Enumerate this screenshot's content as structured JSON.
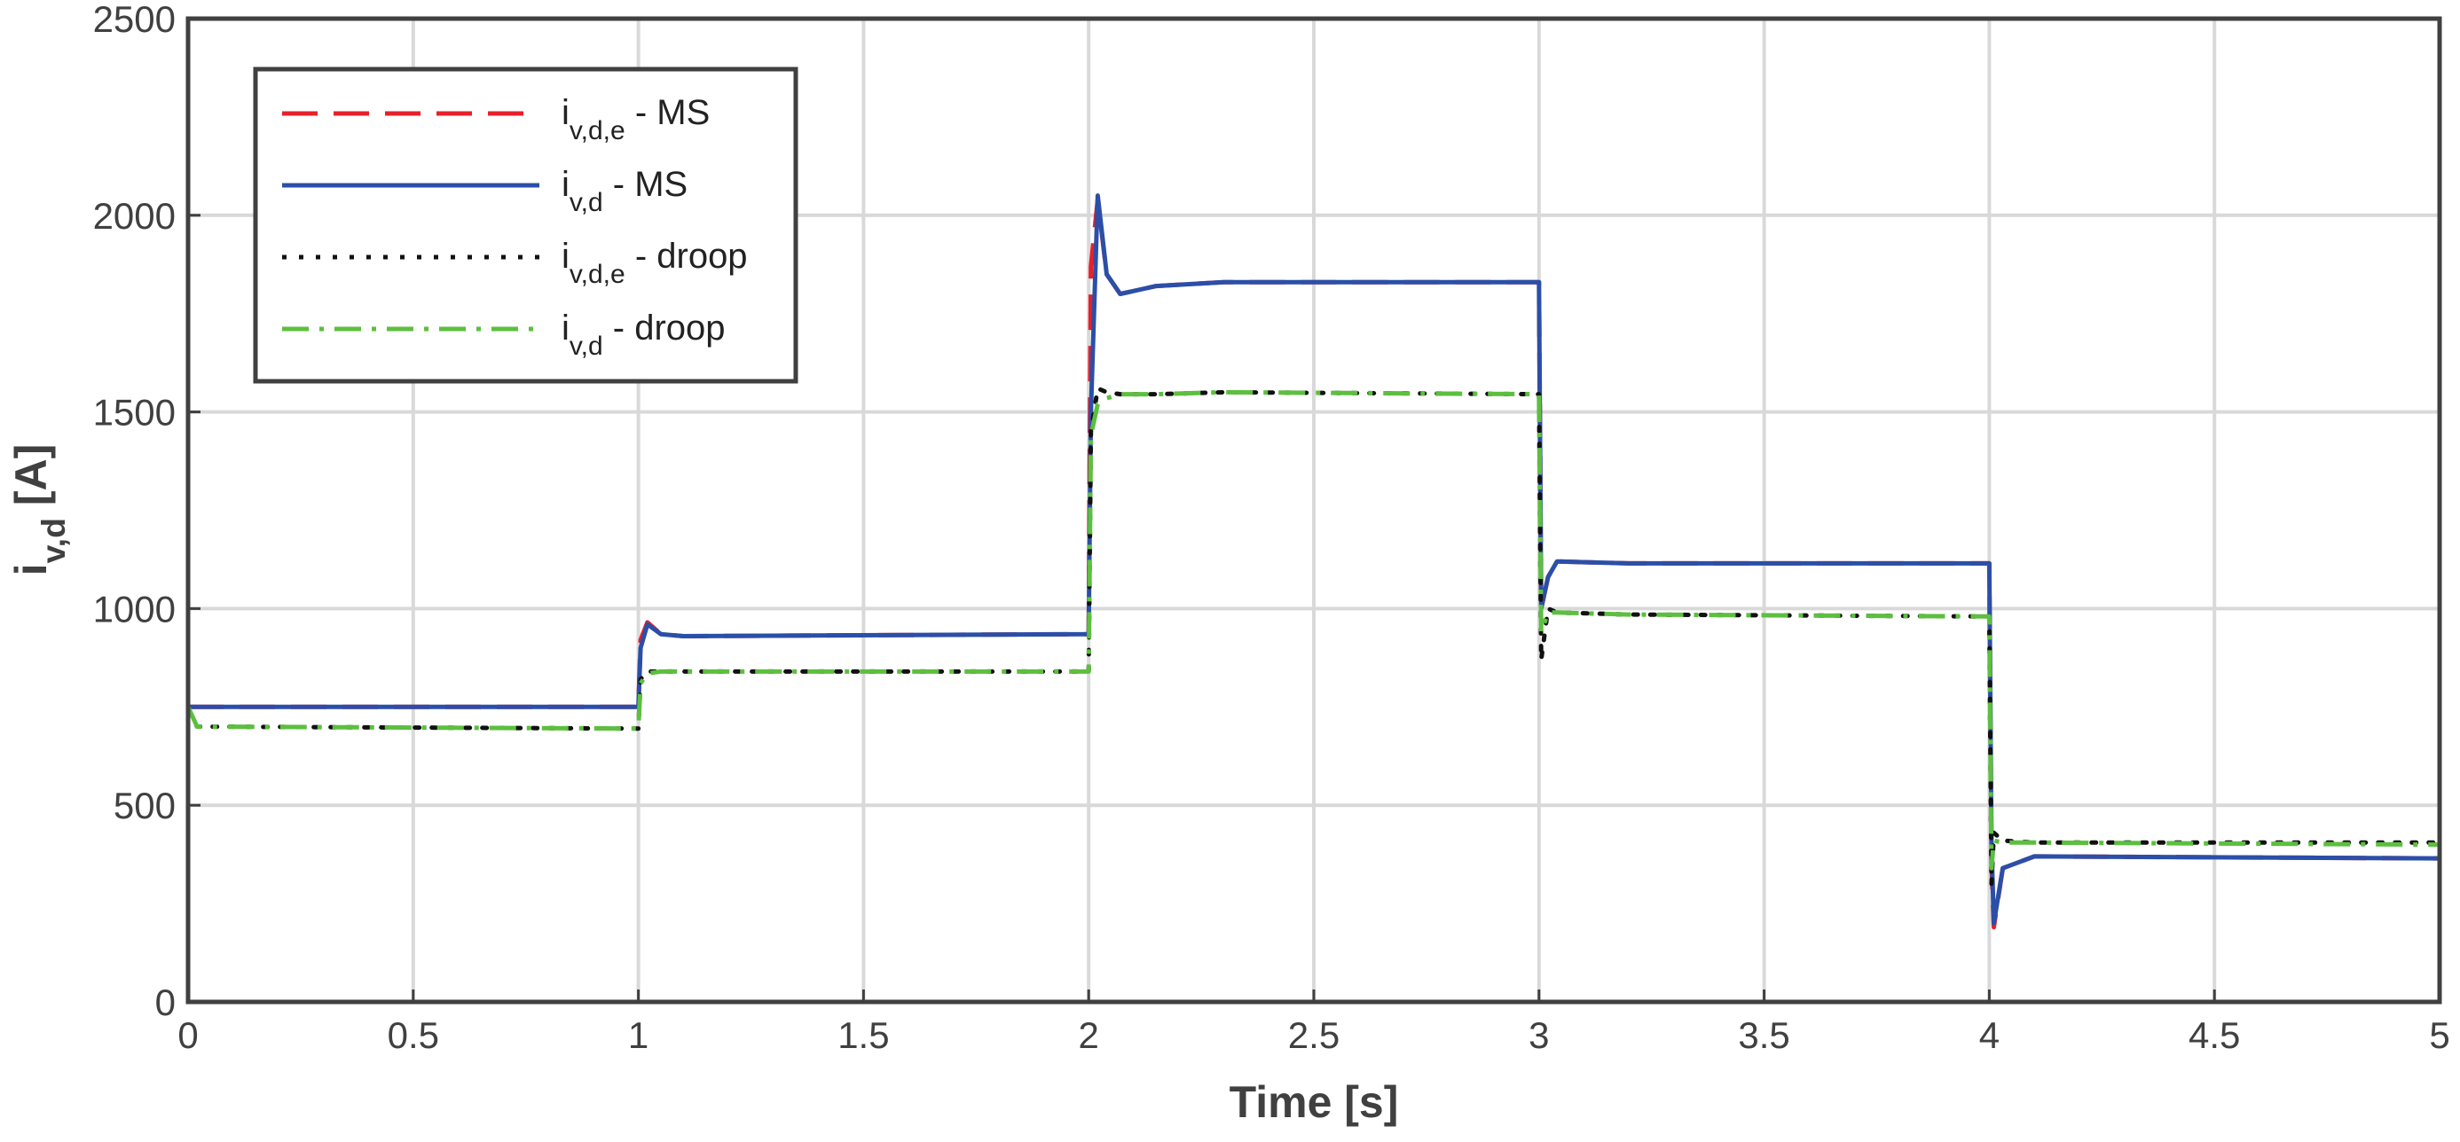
{
  "chart_data": {
    "type": "line",
    "xlabel": "Time [s]",
    "ylabel": "iv,d [A]",
    "x": [
      0,
      0.02,
      1.0,
      1.005,
      1.02,
      1.05,
      1.1,
      2.0,
      2.005,
      2.02,
      2.04,
      2.07,
      2.15,
      2.3,
      3.0,
      3.005,
      3.02,
      3.04,
      3.2,
      4.0,
      4.005,
      4.01,
      4.03,
      4.1,
      5
    ],
    "series": [
      {
        "name": "iv,d,e - MS",
        "color": "#e8202a",
        "style": "dashed",
        "values": [
          750,
          750,
          750,
          920,
          965,
          935,
          930,
          935,
          1870,
          2040,
          1850,
          1800,
          1820,
          1830,
          1830,
          1000,
          1080,
          1120,
          1115,
          1115,
          350,
          190,
          340,
          370,
          365
        ]
      },
      {
        "name": "iv,d - MS",
        "color": "#2b4fa8",
        "style": "solid",
        "values": [
          750,
          750,
          750,
          900,
          960,
          935,
          930,
          935,
          1500,
          2050,
          1850,
          1800,
          1820,
          1830,
          1830,
          1000,
          1080,
          1120,
          1115,
          1115,
          400,
          200,
          340,
          370,
          365
        ]
      },
      {
        "name": "iv,d,e - droop",
        "color": "#111111",
        "style": "dotted",
        "values": [
          740,
          700,
          695,
          820,
          840,
          840,
          840,
          840,
          1450,
          1560,
          1550,
          1545,
          1545,
          1550,
          1545,
          870,
          1000,
          990,
          985,
          980,
          300,
          430,
          410,
          405,
          405
        ]
      },
      {
        "name": "iv,d - droop",
        "color": "#5cbf3f",
        "style": "dashdot",
        "values": [
          750,
          700,
          695,
          810,
          835,
          840,
          840,
          840,
          1440,
          1520,
          1535,
          1545,
          1545,
          1550,
          1545,
          940,
          990,
          990,
          985,
          980,
          340,
          410,
          405,
          405,
          400
        ]
      }
    ],
    "xlim": [
      0,
      5
    ],
    "xticks": [
      0,
      0.5,
      1,
      1.5,
      2,
      2.5,
      3,
      3.5,
      4,
      4.5,
      5
    ],
    "ylim": [
      0,
      2500
    ],
    "yticks": [
      0,
      500,
      1000,
      1500,
      2000,
      2500
    ],
    "grid": true,
    "legend": "upper left"
  }
}
